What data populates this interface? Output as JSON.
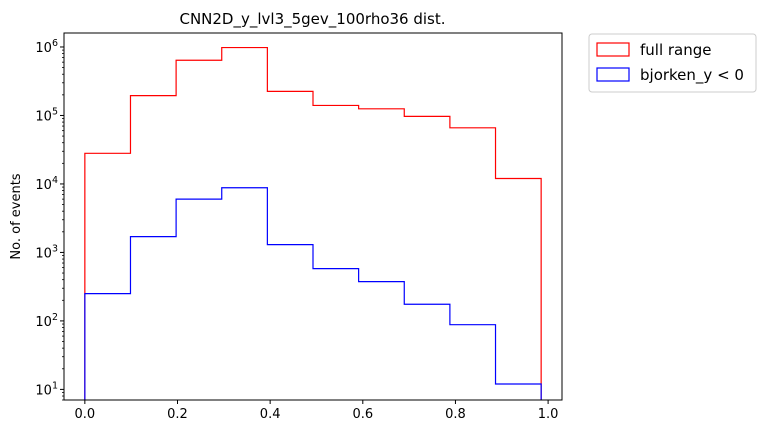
{
  "chart_data": {
    "type": "histogram",
    "title": "CNN2D_y_lvl3_5gev_100rho36 dist.",
    "xlabel": "",
    "ylabel": "No. of events",
    "yscale": "log",
    "xlim": [
      -0.045,
      1.03
    ],
    "ylim": [
      7,
      1600000
    ],
    "bin_edges": [
      0.0,
      0.0985,
      0.197,
      0.2955,
      0.394,
      0.4925,
      0.591,
      0.6895,
      0.788,
      0.8865,
      0.985
    ],
    "x_ticks": [
      {
        "value": 0.0,
        "label": "0.0"
      },
      {
        "value": 0.2,
        "label": "0.2"
      },
      {
        "value": 0.4,
        "label": "0.4"
      },
      {
        "value": 0.6,
        "label": "0.6"
      },
      {
        "value": 0.8,
        "label": "0.8"
      },
      {
        "value": 1.0,
        "label": "1.0"
      }
    ],
    "y_ticks": [
      {
        "value": 10,
        "base": "10",
        "exp": "1"
      },
      {
        "value": 100,
        "base": "10",
        "exp": "2"
      },
      {
        "value": 1000,
        "base": "10",
        "exp": "3"
      },
      {
        "value": 10000,
        "base": "10",
        "exp": "4"
      },
      {
        "value": 100000,
        "base": "10",
        "exp": "5"
      },
      {
        "value": 1000000,
        "base": "10",
        "exp": "6"
      }
    ],
    "series": [
      {
        "name": "full range",
        "color": "#ff0000",
        "values": [
          28000,
          195000,
          640000,
          980000,
          225000,
          140000,
          125000,
          97000,
          66000,
          12000
        ]
      },
      {
        "name": "bjorken_y < 0",
        "color": "#0000ff",
        "values": [
          250,
          1700,
          6000,
          8800,
          1300,
          580,
          375,
          175,
          88,
          12
        ]
      }
    ],
    "legend_position": "outside-upper-right"
  }
}
